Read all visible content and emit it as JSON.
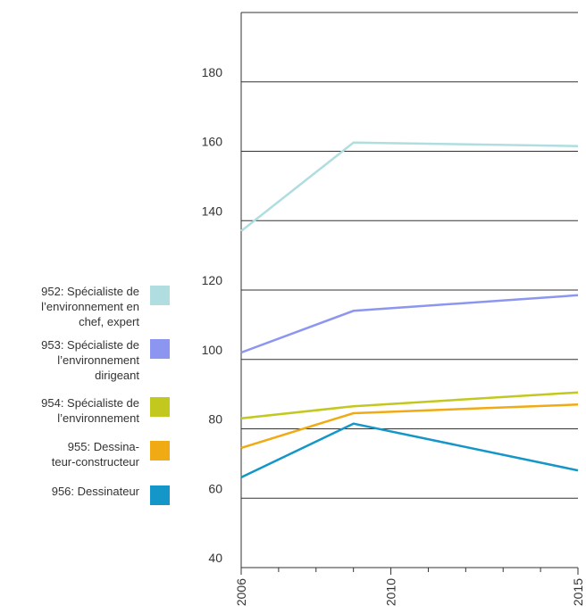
{
  "chart_data": {
    "type": "line",
    "x_ticks": [
      "2006",
      "2010",
      "2015"
    ],
    "ylim": [
      40,
      200
    ],
    "y_ticks": [
      40,
      60,
      80,
      100,
      120,
      140,
      160,
      180
    ],
    "grid": true,
    "legend_position": "left",
    "series": [
      {
        "name": "952: Spécialiste de\nl’environnement en\nchef, expert",
        "color": "#b0dde0",
        "points": [
          {
            "x": 2006,
            "y": 137
          },
          {
            "x": 2009,
            "y": 162.5
          },
          {
            "x": 2015,
            "y": 161.5
          }
        ]
      },
      {
        "name": "953: Spécialiste de\nl’environnement\ndirigeant",
        "color": "#8c96f0",
        "points": [
          {
            "x": 2006,
            "y": 102
          },
          {
            "x": 2009,
            "y": 114
          },
          {
            "x": 2015,
            "y": 118.5
          }
        ]
      },
      {
        "name": "954: Spécialiste de\nl’environnement",
        "color": "#c3c81e",
        "points": [
          {
            "x": 2006,
            "y": 83
          },
          {
            "x": 2009,
            "y": 86.5
          },
          {
            "x": 2015,
            "y": 90.5
          }
        ]
      },
      {
        "name": "955: Dessina-\nteur-constructeur",
        "color": "#f0aa14",
        "points": [
          {
            "x": 2006,
            "y": 74.5
          },
          {
            "x": 2009,
            "y": 84.5
          },
          {
            "x": 2015,
            "y": 87
          }
        ]
      },
      {
        "name": "956: Dessinateur",
        "color": "#1496c8",
        "points": [
          {
            "x": 2006,
            "y": 66
          },
          {
            "x": 2009,
            "y": 81.5
          },
          {
            "x": 2015,
            "y": 68
          }
        ]
      }
    ]
  }
}
